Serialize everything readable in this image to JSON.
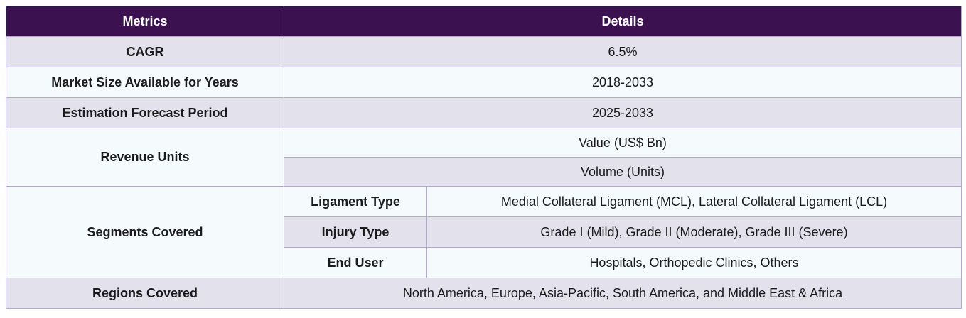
{
  "header": {
    "metrics": "Metrics",
    "details": "Details"
  },
  "rows": {
    "cagr": {
      "label": "CAGR",
      "value": "6.5%"
    },
    "market_size": {
      "label": "Market Size Available for Years",
      "value": "2018-2033"
    },
    "forecast": {
      "label": "Estimation Forecast Period",
      "value": "2025-2033"
    },
    "revenue": {
      "label": "Revenue Units",
      "values": [
        "Value (US$ Bn)",
        "Volume (Units)"
      ]
    },
    "segments": {
      "label": "Segments Covered",
      "items": [
        {
          "name": "Ligament Type",
          "value": "Medial Collateral Ligament (MCL), Lateral Collateral Ligament (LCL)"
        },
        {
          "name": "Injury Type",
          "value": "Grade I (Mild), Grade II (Moderate), Grade III (Severe)"
        },
        {
          "name": "End User",
          "value": "Hospitals, Orthopedic Clinics, Others"
        }
      ]
    },
    "regions": {
      "label": "Regions Covered",
      "value": "North America, Europe, Asia-Pacific, South America, and Middle East & Africa"
    }
  }
}
